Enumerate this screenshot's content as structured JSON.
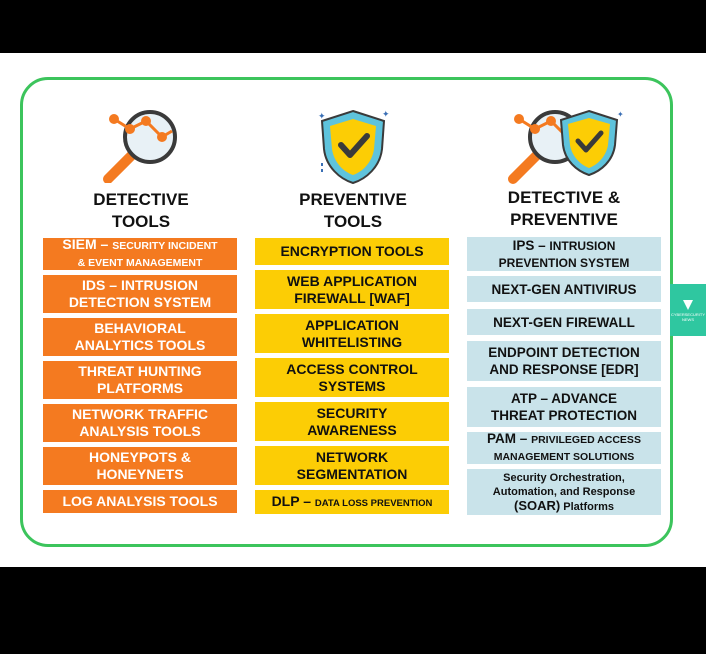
{
  "columns": [
    {
      "title_line1": "DETECTIVE",
      "title_line2": "TOOLS",
      "items": [
        {
          "main": "SIEM –",
          "sub": "SECURITY INCIDENT",
          "sub2": "& EVENT MANAGEMENT"
        },
        {
          "line1": "IDS – INTRUSION",
          "line2": "DETECTION SYSTEM"
        },
        {
          "line1": "BEHAVIORAL",
          "line2": "ANALYTICS TOOLS"
        },
        {
          "line1": "THREAT HUNTING",
          "line2": "PLATFORMS"
        },
        {
          "line1": "NETWORK TRAFFIC",
          "line2": "ANALYSIS TOOLS"
        },
        {
          "line1": "HONEYPOTS &",
          "line2": "HONEYNETS"
        },
        {
          "line1": "LOG ANALYSIS TOOLS"
        }
      ]
    },
    {
      "title_line1": "PREVENTIVE",
      "title_line2": "TOOLS",
      "items": [
        {
          "line1": "ENCRYPTION TOOLS"
        },
        {
          "line1": "WEB APPLICATION",
          "line2": "FIREWALL [WAF]"
        },
        {
          "line1": "APPLICATION",
          "line2": "WHITELISTING"
        },
        {
          "line1": "ACCESS CONTROL",
          "line2": "SYSTEMS"
        },
        {
          "line1": "SECURITY",
          "line2": "AWARENESS"
        },
        {
          "line1": "NETWORK",
          "line2": "SEGMENTATION"
        },
        {
          "main": "DLP –",
          "sub": "DATA LOSS PREVENTION"
        }
      ]
    },
    {
      "title_line1": "DETECTIVE &",
      "title_line2": "PREVENTIVE",
      "items": [
        {
          "main": "IPS –",
          "sub": "INTRUSION",
          "line2": "PREVENTION SYSTEM"
        },
        {
          "line1": "NEXT-GEN ANTIVIRUS"
        },
        {
          "line1": "NEXT-GEN FIREWALL"
        },
        {
          "line1": "ENDPOINT DETECTION",
          "line2": "AND RESPONSE [EDR]"
        },
        {
          "line1": "ATP – ADVANCE",
          "line2": "THREAT PROTECTION"
        },
        {
          "main": "PAM –",
          "sub": "PRIVILEGED ACCESS",
          "sub2": "MANAGEMENT SOLUTIONS"
        },
        {
          "line1": "Security Orchestration,",
          "line2": "Automation, and Response",
          "line3a": "(SOAR)",
          "line3b": "Platforms"
        }
      ]
    }
  ],
  "side_tab": {
    "line1": "CYBERSECURITY",
    "line2": "NEWS"
  },
  "colors": {
    "frame": "#3cc45c",
    "orange": "#f47a20",
    "yellow": "#fccd05",
    "blue": "#c9e3ea",
    "tab": "#2fc7a0"
  },
  "icons": [
    "magnifier-chart-icon",
    "shield-check-icon",
    "magnifier-shield-icon"
  ]
}
